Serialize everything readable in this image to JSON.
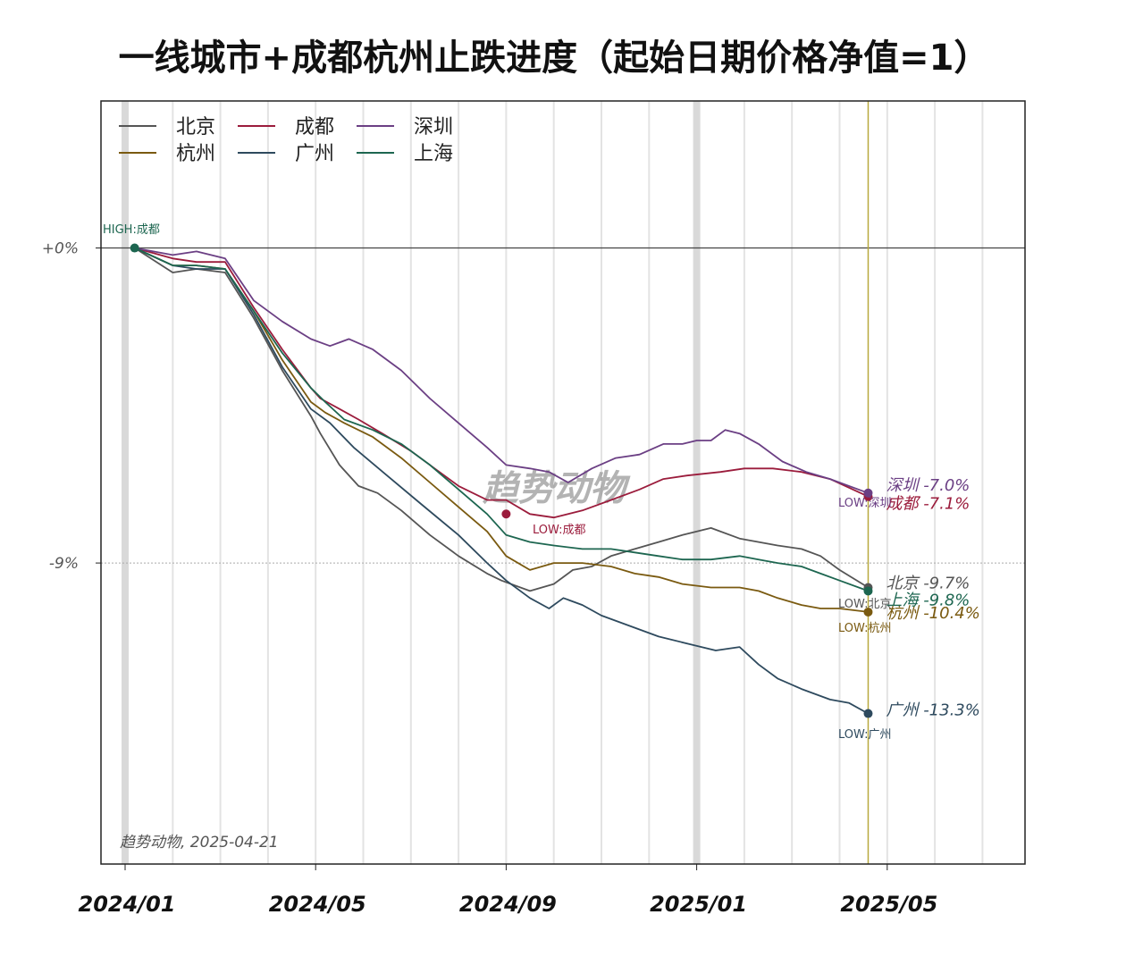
{
  "chart_data": {
    "type": "line",
    "title": "一线城市+成都杭州止跌进度（起始日期价格净值=1）",
    "xlabel": "",
    "ylabel": "",
    "x_tick_labels": [
      "2024/01",
      "2024/05",
      "2024/09",
      "2025/01",
      "2025/05"
    ],
    "y_ticks": [
      {
        "value": 0,
        "label": "+0%"
      },
      {
        "value": -9,
        "label": "-9%"
      }
    ],
    "ylim": [
      -17.6,
      4.2
    ],
    "x_range_months": [
      -0.1,
      19.2
    ],
    "x_unit": "months since 2024-01-01",
    "current_date_marker": 15.6,
    "watermark": "趋势动物",
    "footer_note": "趋势动物, 2025-04-21",
    "high_label": "HIGH:成都",
    "legend": {
      "position": "top-left",
      "columns": 3
    },
    "series": [
      {
        "name": "北京",
        "color": "#555555",
        "end_label": "北京 -9.7%",
        "low_label": "LOW:北京",
        "x": [
          0.2,
          1.0,
          1.5,
          2.1,
          2.7,
          3.3,
          3.9,
          4.1,
          4.5,
          4.9,
          5.3,
          5.8,
          6.4,
          7.0,
          7.6,
          7.9,
          8.5,
          9.0,
          9.4,
          9.8,
          10.2,
          10.7,
          11.2,
          11.7,
          12.3,
          12.9,
          13.3,
          13.7,
          14.2,
          14.6,
          15.0,
          15.6
        ],
        "y": [
          0,
          -0.7,
          -0.6,
          -0.7,
          -2.0,
          -3.5,
          -4.8,
          -5.3,
          -6.2,
          -6.8,
          -7.0,
          -7.5,
          -8.2,
          -8.8,
          -9.3,
          -9.5,
          -9.8,
          -9.6,
          -9.2,
          -9.1,
          -8.8,
          -8.6,
          -8.4,
          -8.2,
          -8.0,
          -8.3,
          -8.4,
          -8.5,
          -8.6,
          -8.8,
          -9.2,
          -9.7
        ]
      },
      {
        "name": "成都",
        "color": "#9b1c3c",
        "end_label": "成都 -7.1%",
        "low_label": "LOW:成都",
        "x": [
          0.2,
          1.0,
          1.5,
          2.1,
          2.7,
          3.3,
          3.9,
          4.1,
          4.5,
          4.9,
          5.4,
          6.0,
          6.5,
          7.0,
          7.6,
          8.0,
          8.5,
          9.0,
          9.6,
          10.2,
          10.8,
          11.3,
          11.8,
          12.5,
          13.0,
          13.6,
          14.2,
          14.8,
          15.6
        ],
        "y": [
          0,
          -0.3,
          -0.4,
          -0.4,
          -1.7,
          -2.9,
          -4.0,
          -4.3,
          -4.6,
          -4.9,
          -5.3,
          -5.8,
          -6.3,
          -6.8,
          -7.2,
          -7.2,
          -7.6,
          -7.7,
          -7.5,
          -7.2,
          -6.9,
          -6.6,
          -6.5,
          -6.4,
          -6.3,
          -6.3,
          -6.4,
          -6.6,
          -7.1
        ]
      },
      {
        "name": "深圳",
        "color": "#6b3f84",
        "end_label": "深圳 -7.0%",
        "low_label": "LOW:深圳",
        "x": [
          0.2,
          1.0,
          1.5,
          2.1,
          2.7,
          3.3,
          3.9,
          4.3,
          4.7,
          5.2,
          5.8,
          6.4,
          7.0,
          7.6,
          8.0,
          8.5,
          8.9,
          9.3,
          9.8,
          10.3,
          10.8,
          11.3,
          11.7,
          12.0,
          12.3,
          12.6,
          12.9,
          13.3,
          13.8,
          14.3,
          14.8,
          15.6
        ],
        "y": [
          0,
          -0.2,
          -0.1,
          -0.3,
          -1.5,
          -2.1,
          -2.6,
          -2.8,
          -2.6,
          -2.9,
          -3.5,
          -4.3,
          -5.0,
          -5.7,
          -6.2,
          -6.3,
          -6.4,
          -6.7,
          -6.3,
          -6.0,
          -5.9,
          -5.6,
          -5.6,
          -5.5,
          -5.5,
          -5.2,
          -5.3,
          -5.6,
          -6.1,
          -6.4,
          -6.6,
          -7.0
        ]
      },
      {
        "name": "杭州",
        "color": "#7a5a10",
        "end_label": "杭州 -10.4%",
        "low_label": "LOW:杭州",
        "x": [
          0.2,
          1.0,
          1.5,
          2.1,
          2.7,
          3.3,
          3.9,
          4.2,
          4.6,
          5.2,
          5.8,
          6.4,
          7.0,
          7.6,
          8.0,
          8.5,
          9.0,
          9.6,
          10.2,
          10.7,
          11.2,
          11.7,
          12.3,
          12.9,
          13.3,
          13.7,
          14.2,
          14.6,
          15.0,
          15.6
        ],
        "y": [
          0,
          -0.5,
          -0.5,
          -0.6,
          -1.8,
          -3.2,
          -4.4,
          -4.7,
          -5.0,
          -5.4,
          -6.0,
          -6.7,
          -7.4,
          -8.1,
          -8.8,
          -9.2,
          -9.0,
          -9.0,
          -9.1,
          -9.3,
          -9.4,
          -9.6,
          -9.7,
          -9.7,
          -9.8,
          -10.0,
          -10.2,
          -10.3,
          -10.3,
          -10.4
        ]
      },
      {
        "name": "广州",
        "color": "#2e4a5e",
        "end_label": "广州 -13.3%",
        "low_label": "LOW:广州",
        "x": [
          0.2,
          1.0,
          1.5,
          2.1,
          2.7,
          3.3,
          3.9,
          4.3,
          4.8,
          5.5,
          6.2,
          7.0,
          7.6,
          8.0,
          8.5,
          8.9,
          9.2,
          9.6,
          10.0,
          10.6,
          11.2,
          11.8,
          12.4,
          12.9,
          13.3,
          13.7,
          14.2,
          14.8,
          15.2,
          15.6
        ],
        "y": [
          0,
          -0.5,
          -0.6,
          -0.6,
          -1.9,
          -3.4,
          -4.6,
          -5.0,
          -5.7,
          -6.5,
          -7.3,
          -8.2,
          -9.0,
          -9.5,
          -10.0,
          -10.3,
          -10.0,
          -10.2,
          -10.5,
          -10.8,
          -11.1,
          -11.3,
          -11.5,
          -11.4,
          -11.9,
          -12.3,
          -12.6,
          -12.9,
          -13.0,
          -13.3
        ]
      },
      {
        "name": "上海",
        "color": "#1d6650",
        "end_label": "上海 -9.8%",
        "low_label": "",
        "x": [
          0.2,
          1.0,
          1.5,
          2.1,
          2.7,
          3.3,
          3.9,
          4.2,
          4.6,
          5.2,
          5.8,
          6.4,
          7.0,
          7.6,
          8.0,
          8.5,
          9.0,
          9.6,
          10.2,
          10.7,
          11.2,
          11.7,
          12.3,
          12.9,
          13.3,
          13.7,
          14.2,
          14.6,
          15.0,
          15.6
        ],
        "y": [
          0,
          -0.5,
          -0.5,
          -0.6,
          -1.8,
          -3.0,
          -4.0,
          -4.4,
          -4.9,
          -5.2,
          -5.6,
          -6.2,
          -6.9,
          -7.6,
          -8.2,
          -8.4,
          -8.5,
          -8.6,
          -8.6,
          -8.7,
          -8.8,
          -8.9,
          -8.9,
          -8.8,
          -8.9,
          -9.0,
          -9.1,
          -9.3,
          -9.5,
          -9.8
        ]
      }
    ]
  }
}
